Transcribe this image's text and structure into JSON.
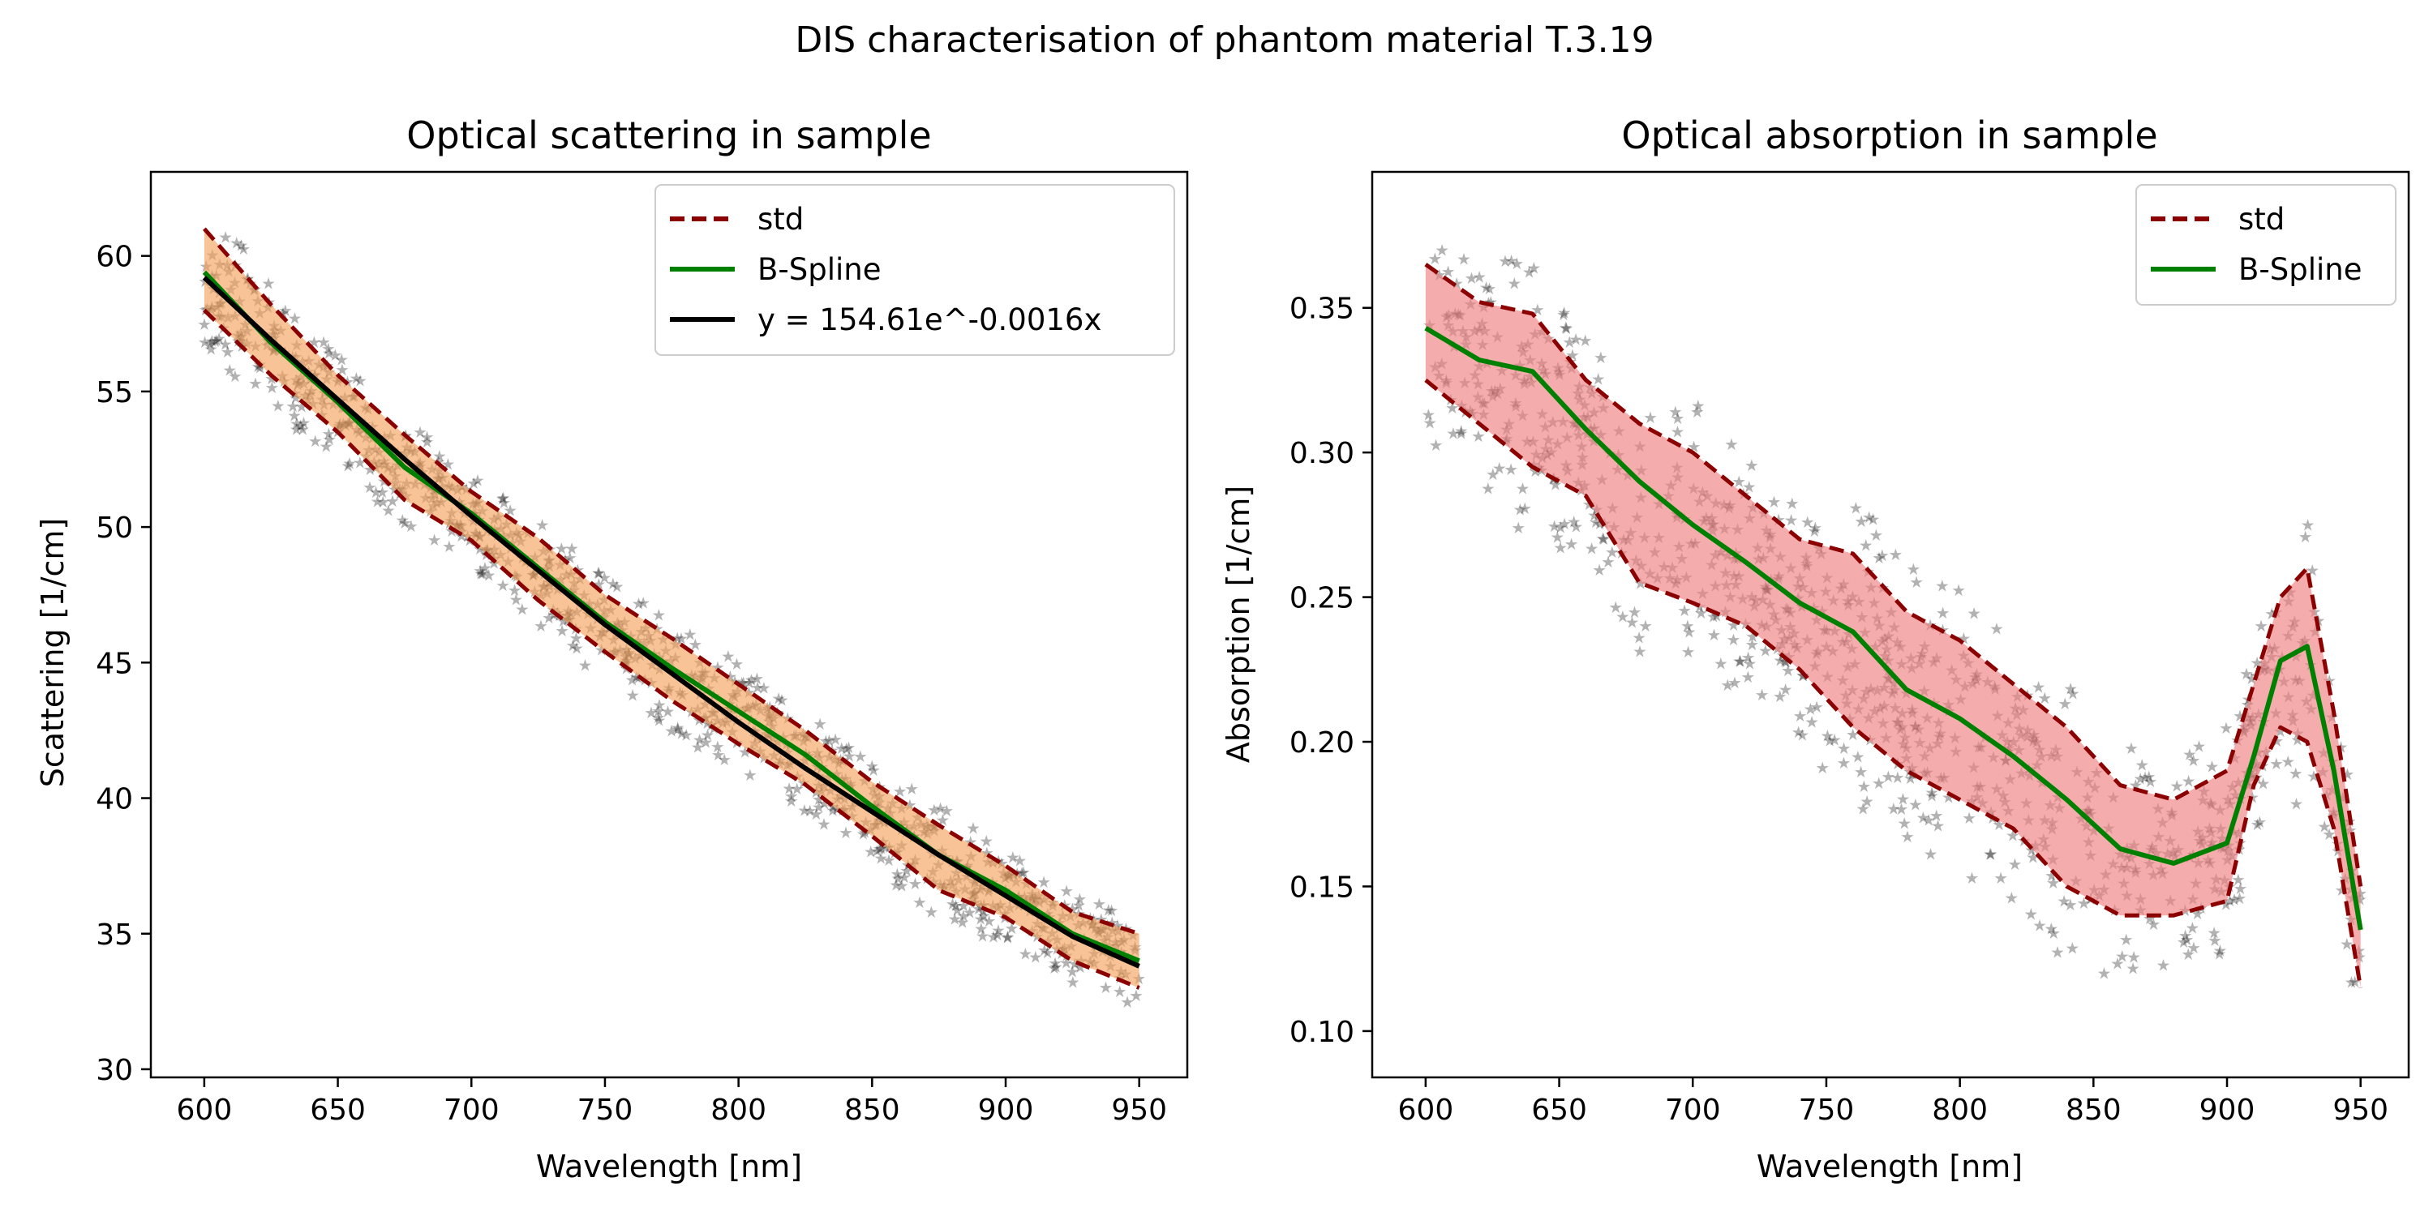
{
  "figure": {
    "suptitle": "DIS characterisation of phantom material T.3.19"
  },
  "colors": {
    "std": "#8b0000",
    "bspline": "#008000",
    "fit": "#000000",
    "band_scattering": "#f4a460",
    "band_absorption": "#f08080",
    "scatter_points": [
      "#440154",
      "#31688e",
      "#35b779",
      "#fde725"
    ]
  },
  "chart_data": [
    {
      "type": "line",
      "title": "Optical scattering in sample",
      "xlabel": "Wavelength [nm]",
      "ylabel": "Scattering [1/cm]",
      "xlim": [
        580,
        968
      ],
      "ylim": [
        29.7,
        63.1
      ],
      "xticks": [
        600,
        650,
        700,
        750,
        800,
        850,
        900,
        950
      ],
      "yticks": [
        30,
        35,
        40,
        45,
        50,
        55,
        60
      ],
      "grid": false,
      "legend_position": "top-right",
      "legend": [
        "std",
        "B-Spline",
        "y = 154.61e^-0.0016x"
      ],
      "x": [
        600,
        625,
        650,
        675,
        700,
        725,
        750,
        775,
        800,
        825,
        850,
        875,
        900,
        925,
        950
      ],
      "series": [
        {
          "name": "std",
          "style": "dashed",
          "role": "upper",
          "values": [
            61.0,
            58.2,
            55.6,
            53.4,
            51.3,
            49.6,
            47.5,
            45.9,
            44.2,
            42.5,
            40.6,
            39.0,
            37.5,
            35.8,
            35.0
          ]
        },
        {
          "name": "std",
          "style": "dashed",
          "role": "lower",
          "values": [
            58.0,
            55.6,
            53.5,
            51.0,
            49.5,
            47.3,
            45.4,
            43.6,
            42.0,
            40.5,
            38.6,
            36.6,
            35.6,
            34.0,
            33.0
          ]
        },
        {
          "name": "B-Spline",
          "values": [
            59.4,
            56.8,
            54.6,
            52.2,
            50.5,
            48.5,
            46.5,
            44.8,
            43.2,
            41.6,
            39.7,
            37.9,
            36.6,
            35.0,
            34.0
          ]
        },
        {
          "name": "y = 154.61e^-0.0016x",
          "values": [
            59.2,
            56.9,
            54.7,
            52.5,
            50.4,
            48.4,
            46.4,
            44.6,
            42.8,
            41.1,
            39.5,
            37.9,
            36.4,
            34.9,
            33.8
          ]
        }
      ]
    },
    {
      "type": "line",
      "title": "Optical absorption in sample",
      "xlabel": "Wavelength [nm]",
      "ylabel": "Absorption [1/cm]",
      "xlim": [
        580,
        968
      ],
      "ylim": [
        0.084,
        0.397
      ],
      "xticks": [
        600,
        650,
        700,
        750,
        800,
        850,
        900,
        950
      ],
      "yticks": [
        0.1,
        0.15,
        0.2,
        0.25,
        0.3,
        0.35
      ],
      "ytick_labels": [
        "0.10",
        "0.15",
        "0.20",
        "0.25",
        "0.30",
        "0.35"
      ],
      "grid": false,
      "legend_position": "top-right",
      "legend": [
        "std",
        "B-Spline"
      ],
      "x": [
        600,
        620,
        640,
        660,
        680,
        700,
        720,
        740,
        760,
        780,
        800,
        820,
        840,
        860,
        880,
        900,
        910,
        920,
        930,
        940,
        950
      ],
      "series": [
        {
          "name": "std",
          "style": "dashed",
          "role": "upper",
          "values": [
            0.365,
            0.352,
            0.348,
            0.325,
            0.31,
            0.3,
            0.285,
            0.27,
            0.265,
            0.245,
            0.235,
            0.22,
            0.205,
            0.185,
            0.18,
            0.19,
            0.22,
            0.25,
            0.26,
            0.21,
            0.15
          ]
        },
        {
          "name": "std",
          "style": "dashed",
          "role": "lower",
          "values": [
            0.325,
            0.31,
            0.295,
            0.285,
            0.255,
            0.248,
            0.24,
            0.225,
            0.205,
            0.19,
            0.18,
            0.17,
            0.15,
            0.14,
            0.14,
            0.145,
            0.185,
            0.205,
            0.2,
            0.17,
            0.115
          ]
        },
        {
          "name": "B-Spline",
          "values": [
            0.343,
            0.332,
            0.328,
            0.308,
            0.29,
            0.275,
            0.262,
            0.248,
            0.238,
            0.218,
            0.208,
            0.195,
            0.18,
            0.163,
            0.158,
            0.165,
            0.195,
            0.228,
            0.233,
            0.19,
            0.135
          ]
        }
      ]
    }
  ]
}
